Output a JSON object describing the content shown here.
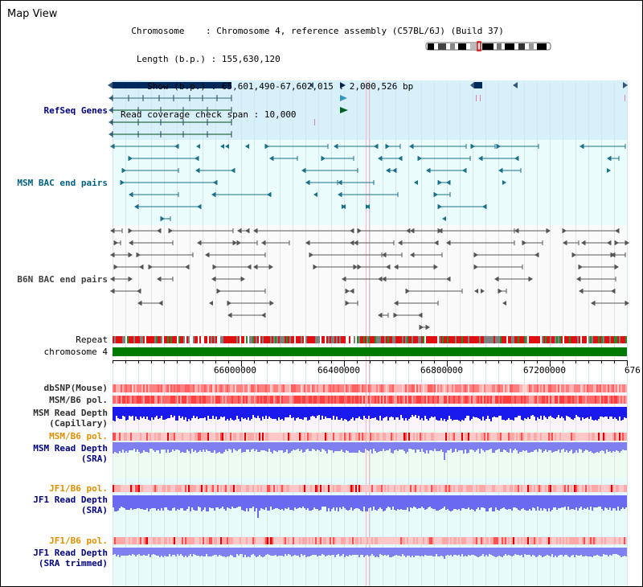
{
  "title": "Map View",
  "info": {
    "chromosome_key": "Chromosome",
    "chromosome_val": ": Chromosome 4, reference assembly (C57BL/6J) (Build 37)",
    "length_key": "Length (b.p.)",
    "length_val": ": 155,630,120",
    "show_key": "Show (b.p.)",
    "show_val": ": 65,601,490-67,602,015 : 2,000,526 bp",
    "coverage_key": "Read coverage check span",
    "coverage_val": ": 10,000"
  },
  "tracks": {
    "refseq": "RefSeq Genes",
    "msm_bac": "MSM BAC end pairs",
    "b6n_bac": "B6N BAC end pairs",
    "repeat": "Repeat",
    "chromosome": "chromosome 4",
    "dbsnp": "dbSNP(Mouse)",
    "msm_b6_pol_1": "MSM/B6 pol.",
    "msm_read_depth_cap_1": "MSM Read Depth",
    "msm_read_depth_cap_2": "(Capillary)",
    "msm_b6_pol_2": "MSM/B6 pol.",
    "msm_read_depth_sra_1": "MSM Read Depth",
    "msm_read_depth_sra_2": "(SRA)",
    "jf1_b6_pol_1": "JF1/B6 pol.",
    "jf1_read_depth_sra_1": "JF1 Read Depth",
    "jf1_read_depth_sra_2": "(SRA)",
    "jf1_b6_pol_2": "JF1/B6 pol.",
    "jf1_read_depth_trim_1": "JF1 Read Depth",
    "jf1_read_depth_trim_2": "(SRA trimmed)"
  },
  "axis": {
    "ticks": [
      "66000000",
      "66400000",
      "66800000",
      "67200000",
      "676"
    ]
  },
  "colors": {
    "refseq_bg": "#d8f0fa",
    "msm_bg": "#eafcfc",
    "b6n_bg": "#fafafa",
    "read_bg": "#f0f6ff",
    "depth_blue": "#1a1aee",
    "depth_light": "#7f7ff0",
    "pol_red": "#ff6060",
    "chrom_green": "#007a00"
  }
}
